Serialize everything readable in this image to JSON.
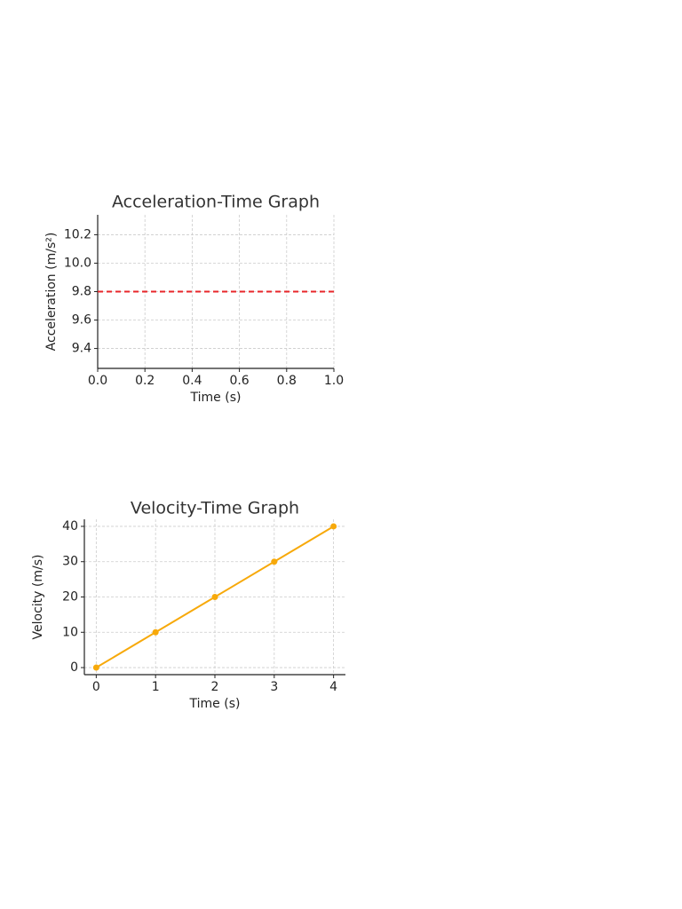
{
  "chart_data": [
    {
      "type": "line",
      "title": "Acceleration-Time Graph",
      "x_label": "Time (s)",
      "y_label": "Acceleration (m/s²)",
      "x": [
        0,
        1
      ],
      "series": [
        {
          "values": [
            9.8,
            9.8
          ],
          "color": "#e8262a"
        }
      ],
      "linestyle": "dashed",
      "marker": "none",
      "xlim": [
        0,
        1
      ],
      "xticks": [
        {
          "value": 0,
          "label": "0.0"
        },
        0.2,
        0.4,
        0.6,
        0.8,
        {
          "value": 1,
          "label": "1.0"
        }
      ],
      "ylim": [
        9.26,
        10.34
      ],
      "yticks": [
        9.4,
        9.6,
        9.8,
        {
          "value": 10,
          "label": "10.0"
        },
        10.2
      ],
      "grid": true
    },
    {
      "type": "line",
      "title": "Velocity-Time Graph",
      "x_label": "Time (s)",
      "y_label": "Velocity (m/s)",
      "x": [
        0,
        1,
        2,
        3,
        4
      ],
      "series": [
        {
          "values": [
            0,
            10,
            20,
            30,
            40
          ],
          "color": "#f7a90a"
        }
      ],
      "linestyle": "solid",
      "marker": "circle",
      "xlim": [
        -0.2,
        4.2
      ],
      "xticks": [
        0,
        1,
        2,
        3,
        4
      ],
      "ylim": [
        -2,
        42
      ],
      "yticks": [
        0,
        10,
        20,
        30,
        40
      ],
      "grid": true
    }
  ]
}
